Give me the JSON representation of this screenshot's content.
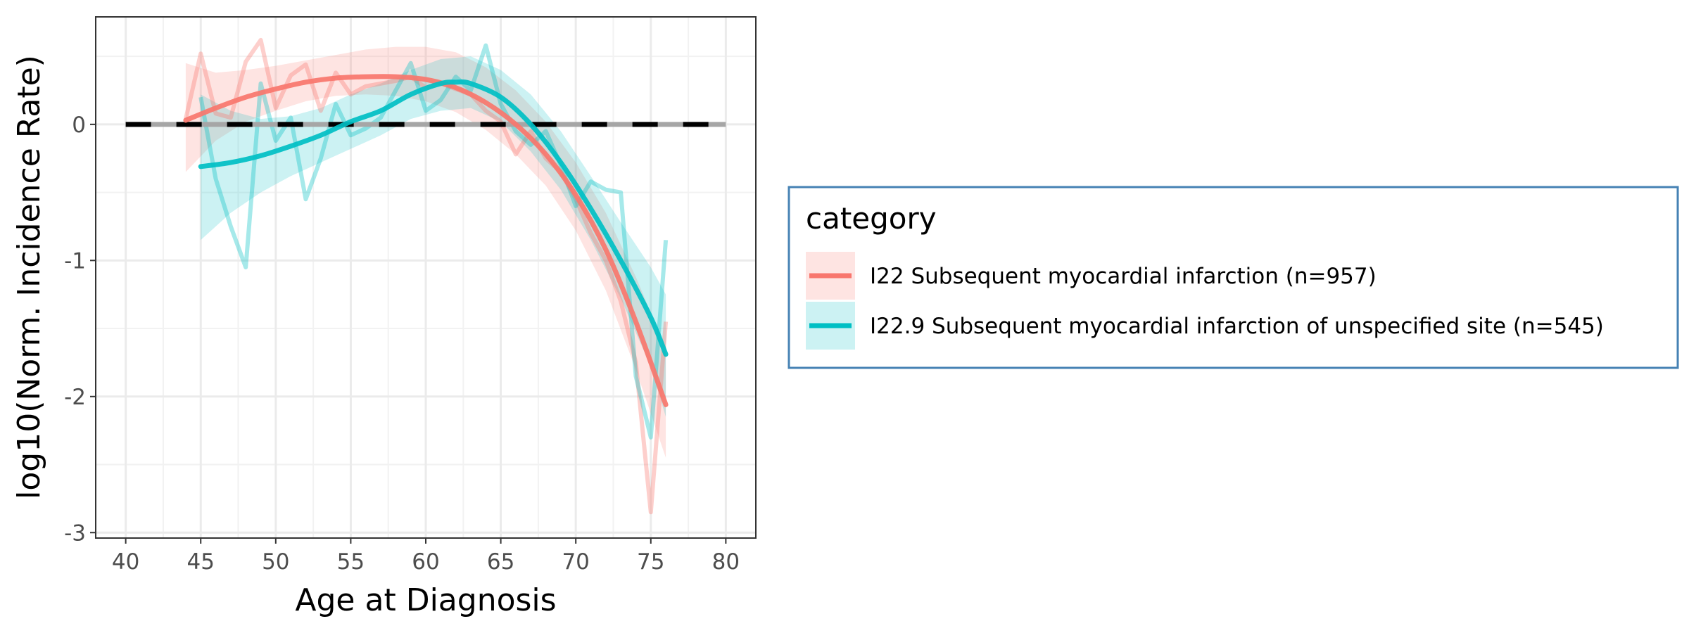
{
  "chart_data": {
    "type": "line",
    "xlabel": "Age at Diagnosis",
    "ylabel": "log10(Norm. Incidence Rate)",
    "xlim": [
      38,
      82
    ],
    "ylim": [
      -3.04,
      0.79
    ],
    "x_ticks": [
      "40",
      "45",
      "50",
      "55",
      "60",
      "65",
      "70",
      "75",
      "80"
    ],
    "y_ticks": [
      "0",
      "-1",
      "-2",
      "-3"
    ],
    "grid": true,
    "reference_line": {
      "y": 0,
      "x_from": 40,
      "x_to": 80,
      "style": "dashed"
    },
    "legend": {
      "title": "category",
      "placement": "right"
    },
    "series": [
      {
        "name": "I22 Subsequent myocardial infarction (n=957)",
        "color": "#F8766D",
        "raw": {
          "x": [
            44,
            45,
            46,
            47,
            48,
            49,
            50,
            51,
            52,
            53,
            54,
            55,
            56,
            57,
            58,
            59,
            60,
            61,
            62,
            63,
            64,
            65,
            66,
            67,
            68,
            69,
            70,
            71,
            72,
            73,
            74,
            75,
            76
          ],
          "y": [
            0.04,
            0.52,
            0.08,
            0.05,
            0.46,
            0.62,
            0.12,
            0.36,
            0.44,
            0.1,
            0.38,
            0.22,
            0.28,
            0.3,
            0.32,
            0.35,
            0.27,
            0.3,
            0.26,
            0.22,
            0.1,
            0.02,
            -0.22,
            -0.05,
            -0.25,
            -0.35,
            -0.55,
            -0.8,
            -1.0,
            -1.3,
            -1.75,
            -2.85,
            -1.45
          ]
        },
        "smooth": {
          "x": [
            44,
            46,
            48,
            50,
            52,
            54,
            56,
            58,
            60,
            62,
            64,
            66,
            68,
            70,
            72,
            74,
            76
          ],
          "y": [
            0.03,
            0.12,
            0.2,
            0.26,
            0.31,
            0.34,
            0.35,
            0.35,
            0.33,
            0.27,
            0.16,
            0.0,
            -0.22,
            -0.52,
            -0.92,
            -1.45,
            -2.06
          ]
        },
        "band": {
          "x": [
            44,
            46,
            48,
            50,
            52,
            54,
            56,
            58,
            60,
            62,
            64,
            66,
            68,
            70,
            72,
            74,
            76
          ],
          "lower": [
            -0.35,
            -0.12,
            0.02,
            0.1,
            0.17,
            0.21,
            0.22,
            0.21,
            0.17,
            0.09,
            -0.04,
            -0.22,
            -0.45,
            -0.78,
            -1.22,
            -1.8,
            -2.45
          ],
          "upper": [
            0.45,
            0.38,
            0.4,
            0.43,
            0.47,
            0.51,
            0.55,
            0.57,
            0.57,
            0.53,
            0.42,
            0.25,
            0.02,
            -0.28,
            -0.65,
            -1.12,
            -1.65
          ]
        }
      },
      {
        "name": "I22.9 Subsequent myocardial infarction of unspecified site (n=545)",
        "color": "#00BFC4",
        "raw": {
          "x": [
            45,
            46,
            47,
            48,
            49,
            50,
            51,
            52,
            53,
            54,
            55,
            56,
            57,
            58,
            59,
            60,
            61,
            62,
            63,
            64,
            65,
            66,
            67,
            68,
            69,
            70,
            71,
            72,
            73,
            74,
            75,
            76
          ],
          "y": [
            0.2,
            -0.4,
            -0.75,
            -1.05,
            0.3,
            -0.12,
            0.05,
            -0.55,
            -0.25,
            0.15,
            -0.08,
            -0.03,
            0.05,
            0.25,
            0.45,
            0.1,
            0.18,
            0.35,
            0.25,
            0.58,
            0.15,
            -0.05,
            -0.15,
            -0.05,
            -0.3,
            -0.6,
            -0.42,
            -0.48,
            -0.5,
            -1.85,
            -2.3,
            -0.85
          ]
        },
        "smooth": {
          "x": [
            45,
            47,
            49,
            51,
            53,
            55,
            57,
            59,
            61,
            62,
            63,
            65,
            67,
            69,
            71,
            73,
            75,
            76
          ],
          "y": [
            -0.31,
            -0.28,
            -0.23,
            -0.16,
            -0.08,
            0.02,
            0.1,
            0.22,
            0.3,
            0.31,
            0.3,
            0.2,
            0.0,
            -0.28,
            -0.62,
            -1.0,
            -1.42,
            -1.69
          ]
        },
        "band": {
          "x": [
            45,
            47,
            49,
            51,
            53,
            55,
            57,
            59,
            61,
            63,
            65,
            67,
            69,
            71,
            73,
            75,
            76
          ],
          "lower": [
            -0.85,
            -0.65,
            -0.5,
            -0.38,
            -0.28,
            -0.18,
            -0.08,
            0.04,
            0.1,
            0.12,
            0.02,
            -0.2,
            -0.48,
            -0.85,
            -1.28,
            -1.78,
            -2.15
          ],
          "upper": [
            0.22,
            0.1,
            0.04,
            0.06,
            0.12,
            0.22,
            0.3,
            0.4,
            0.48,
            0.5,
            0.4,
            0.22,
            -0.05,
            -0.38,
            -0.72,
            -1.05,
            -1.25
          ]
        }
      }
    ]
  }
}
